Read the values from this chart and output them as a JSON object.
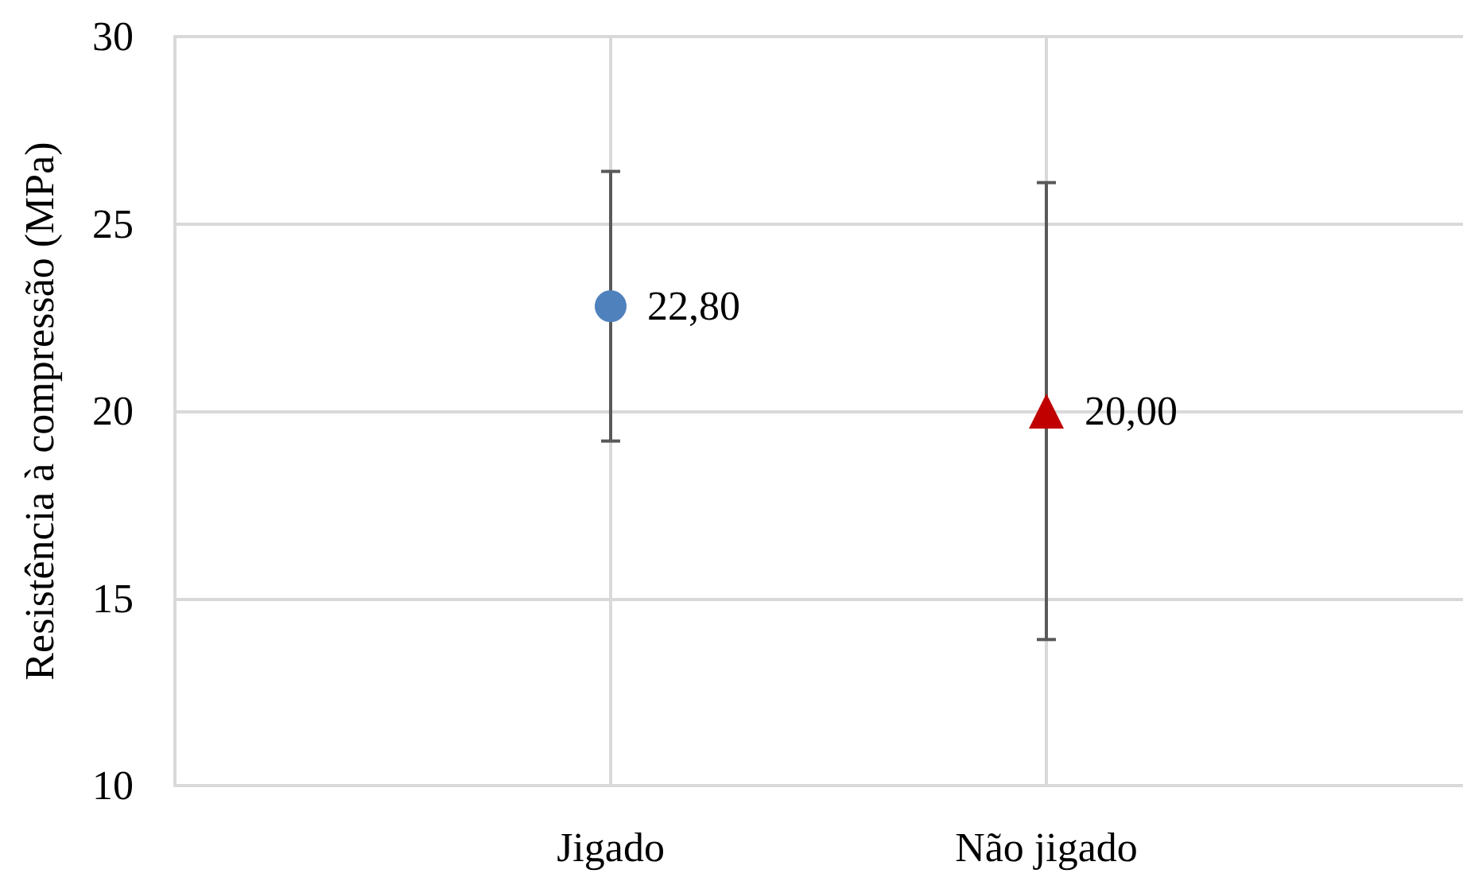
{
  "chart_data": {
    "type": "scatter",
    "ylabel": "Resistência à compressão (MPa)",
    "categories": [
      "Jigado",
      "Não jigado"
    ],
    "series": [
      {
        "color": "#4f81bd",
        "marker": "circle",
        "values": [
          22.8,
          null
        ],
        "errors": [
          3.6,
          null
        ],
        "value_labels": [
          "22,80",
          null
        ]
      },
      {
        "color": "#c00000",
        "marker": "triangle",
        "values": [
          null,
          20.0
        ],
        "errors": [
          null,
          6.1
        ],
        "value_labels": [
          null,
          "20,00"
        ]
      }
    ],
    "ylim": [
      10,
      30
    ],
    "yticks": [
      10,
      15,
      20,
      25,
      30
    ],
    "grid": true
  }
}
